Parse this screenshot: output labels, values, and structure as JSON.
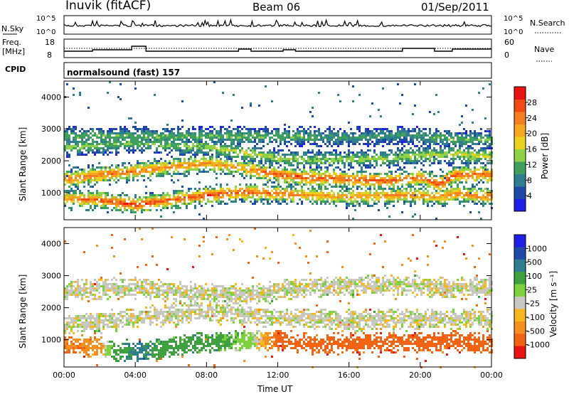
{
  "header": {
    "title": "Inuvik (fitACF)",
    "beam": "Beam 06",
    "date": "01/Sep/2011"
  },
  "strip_labels": {
    "nsky": "N.Sky",
    "nsearch": "N.Search",
    "freq": "Freq.",
    "freq_unit": "[MHz]",
    "nave": "Nave",
    "cpid": "CPID",
    "cpid_value": "normalsound (fast) 157",
    "nsky_ticks": [
      "10^5",
      "10^0"
    ],
    "nsearch_ticks": [
      "10^5",
      "10^0"
    ],
    "freq_ticks": [
      "18",
      "8"
    ],
    "nave_ticks": [
      "60",
      "0"
    ]
  },
  "colors": {
    "power": [
      "#1f1fe6",
      "#1f4aa8",
      "#2f7f8f",
      "#3f9f5f",
      "#8fd24a",
      "#e8d21f",
      "#f5a81f",
      "#f57f1f",
      "#f24a14",
      "#e81414"
    ],
    "velocity": [
      "#e81414",
      "#f26414",
      "#f58f1f",
      "#f5b81f",
      "#c8c8c0",
      "#7fd23f",
      "#3fa03f",
      "#2f7f8f",
      "#1f4aa8",
      "#1f1fe6"
    ]
  },
  "chart_data": [
    {
      "type": "heatmap",
      "title": "Power",
      "xlabel": "",
      "ylabel": "Slant Range [km]",
      "xlim": [
        0,
        24
      ],
      "ylim": [
        150,
        4500
      ],
      "x_ticks": [
        "00:00",
        "04:00",
        "08:00",
        "12:00",
        "16:00",
        "20:00",
        "00:00"
      ],
      "y_ticks": [
        1000,
        2000,
        3000,
        4000
      ],
      "colorbar": {
        "label": "Power [dB]",
        "ticks": [
          "4",
          "8",
          "12",
          "16",
          "20",
          "24",
          "28"
        ],
        "range": [
          0,
          30
        ]
      },
      "bands": [
        {
          "name": "lower",
          "points": [
            [
              0,
              850,
              22
            ],
            [
              2,
              800,
              26
            ],
            [
              4,
              650,
              27
            ],
            [
              6,
              800,
              25
            ],
            [
              8,
              950,
              26
            ],
            [
              10,
              1050,
              25
            ],
            [
              12,
              1000,
              24
            ],
            [
              14,
              950,
              22
            ],
            [
              16,
              900,
              21
            ],
            [
              18,
              950,
              22
            ],
            [
              20,
              950,
              22
            ],
            [
              21,
              900,
              22
            ],
            [
              22,
              1000,
              23
            ],
            [
              24,
              900,
              24
            ]
          ]
        },
        {
          "name": "middle",
          "points": [
            [
              0,
              1450,
              24
            ],
            [
              2,
              1600,
              24
            ],
            [
              4,
              1700,
              24
            ],
            [
              6,
              1850,
              22
            ],
            [
              8,
              1950,
              22
            ],
            [
              10,
              1800,
              21
            ],
            [
              12,
              1600,
              26
            ],
            [
              14,
              1500,
              26
            ],
            [
              16,
              1450,
              25
            ],
            [
              18,
              1400,
              26
            ],
            [
              20,
              1500,
              24
            ],
            [
              21,
              1300,
              27
            ],
            [
              22,
              1600,
              26
            ],
            [
              24,
              1600,
              25
            ]
          ]
        },
        {
          "name": "upper",
          "points": [
            [
              0,
              2450,
              14
            ],
            [
              4,
              2600,
              12
            ],
            [
              8,
              2450,
              14
            ],
            [
              10,
              2300,
              16
            ],
            [
              12,
              2100,
              14
            ],
            [
              14,
              2050,
              14
            ],
            [
              18,
              2100,
              14
            ],
            [
              20,
              2200,
              15
            ],
            [
              22,
              2250,
              16
            ],
            [
              24,
              2150,
              16
            ]
          ]
        },
        {
          "name": "outer",
          "points": [
            [
              13,
              2800,
              12
            ],
            [
              16,
              2750,
              10
            ],
            [
              19,
              2850,
              10
            ],
            [
              22,
              2700,
              12
            ]
          ]
        }
      ]
    },
    {
      "type": "heatmap",
      "title": "Velocity",
      "xlabel": "Time UT",
      "ylabel": "Slant Range [km]",
      "xlim": [
        0,
        24
      ],
      "ylim": [
        150,
        4500
      ],
      "x_ticks": [
        "00:00",
        "04:00",
        "08:00",
        "12:00",
        "16:00",
        "20:00",
        "00:00"
      ],
      "y_ticks": [
        1000,
        2000,
        3000,
        4000
      ],
      "colorbar": {
        "label": "Velocity [m s⁻¹]",
        "ticks": [
          "1000",
          "500",
          "100",
          "25",
          "-25",
          "-100",
          "-500",
          "-1000"
        ]
      },
      "bands": [
        {
          "name": "lower",
          "points": [
            [
              0,
              850,
              -150
            ],
            [
              2,
              800,
              -100
            ],
            [
              3,
              700,
              300
            ],
            [
              4,
              650,
              400
            ],
            [
              6,
              800,
              250
            ],
            [
              8,
              950,
              200
            ],
            [
              10,
              1000,
              120
            ],
            [
              12,
              1050,
              -200
            ],
            [
              14,
              900,
              -200
            ],
            [
              16,
              900,
              -300
            ],
            [
              18,
              950,
              -250
            ],
            [
              20,
              950,
              -200
            ],
            [
              22,
              1000,
              -250
            ],
            [
              24,
              900,
              -300
            ]
          ]
        },
        {
          "name": "middle",
          "points": [
            [
              0,
              1500,
              0
            ],
            [
              4,
              1700,
              0
            ],
            [
              8,
              1950,
              0
            ],
            [
              12,
              1700,
              0
            ],
            [
              16,
              1650,
              0
            ],
            [
              20,
              1650,
              0
            ],
            [
              24,
              1700,
              0
            ]
          ]
        },
        {
          "name": "upper",
          "points": [
            [
              0,
              2600,
              0
            ],
            [
              4,
              2650,
              0
            ],
            [
              10,
              2400,
              0
            ],
            [
              14,
              2700,
              0
            ],
            [
              18,
              2750,
              0
            ],
            [
              22,
              2650,
              0
            ],
            [
              24,
              2700,
              0
            ]
          ]
        }
      ]
    }
  ]
}
